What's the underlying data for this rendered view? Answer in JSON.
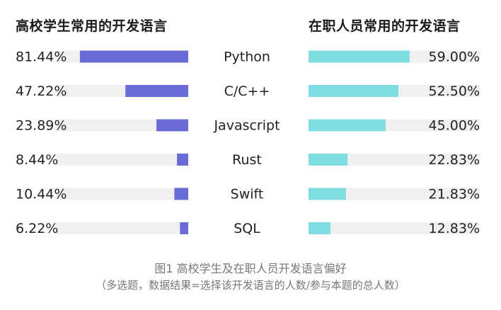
{
  "chart_data": [
    {
      "type": "bar",
      "title": "高校学生常用的开发语言",
      "categories": [
        "Python",
        "C/C++",
        "Javascript",
        "Rust",
        "Swift",
        "SQL"
      ],
      "values": [
        81.44,
        47.22,
        23.89,
        8.44,
        10.44,
        6.22
      ],
      "value_labels": [
        "81.44%",
        "47.22%",
        "23.89%",
        "8.44%",
        "10.44%",
        "6.22%"
      ],
      "orientation": "horizontal",
      "direction": "right-to-left",
      "xlim": [
        0,
        100
      ],
      "bar_color": "#6b6bd6",
      "track_color": "#f0f0f0"
    },
    {
      "type": "bar",
      "title": "在职人员常用的开发语言",
      "categories": [
        "Python",
        "C/C++",
        "Javascript",
        "Rust",
        "Swift",
        "SQL"
      ],
      "values": [
        59.0,
        52.5,
        45.0,
        22.83,
        21.83,
        12.83
      ],
      "value_labels": [
        "59.00%",
        "52.50%",
        "45.00%",
        "22.83%",
        "21.83%",
        "12.83%"
      ],
      "orientation": "horizontal",
      "direction": "left-to-right",
      "xlim": [
        0,
        100
      ],
      "bar_color": "#7fdde2",
      "track_color": "#f0f0f0"
    }
  ],
  "caption": {
    "line1": "图1 高校学生及在职人员开发语言偏好",
    "line2": "（多选题，数据结果=选择该开发语言的人数/参与本题的总人数）"
  },
  "colors": {
    "text": "#222222",
    "caption": "#777777"
  }
}
